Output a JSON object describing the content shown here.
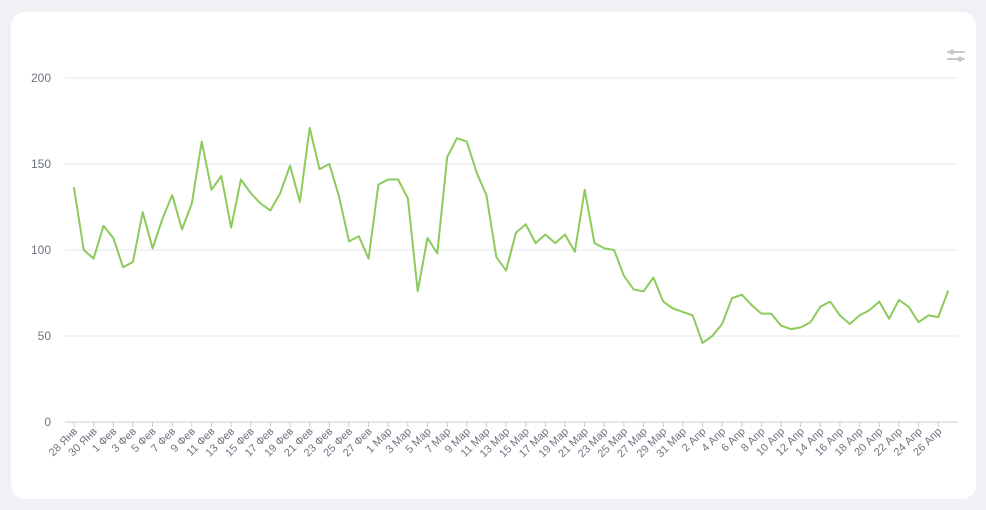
{
  "toolbar": {
    "settings_icon": "sliders-icon"
  },
  "colors": {
    "line": "#8dca5c",
    "grid": "#e6e7ea",
    "axis": "#c9ccd2",
    "card": "#ffffff",
    "background": "#f0f1f4"
  },
  "chart_data": {
    "type": "line",
    "title": "",
    "xlabel": "",
    "ylabel": "",
    "ylim": [
      0,
      200
    ],
    "yticks": [
      0,
      50,
      100,
      150,
      200
    ],
    "grid": true,
    "x": [
      "28 Янв",
      "29 Янв",
      "30 Янв",
      "31 Янв",
      "1 Фев",
      "2 Фев",
      "3 Фев",
      "4 Фев",
      "5 Фев",
      "6 Фев",
      "7 Фев",
      "8 Фев",
      "9 Фев",
      "10 Фев",
      "11 Фев",
      "12 Фев",
      "13 Фев",
      "14 Фев",
      "15 Фев",
      "16 Фев",
      "17 Фев",
      "18 Фев",
      "19 Фев",
      "20 Фев",
      "21 Фев",
      "22 Фев",
      "23 Фев",
      "24 Фев",
      "25 Фев",
      "26 Фев",
      "27 Фев",
      "28 Фев",
      "1 Мар",
      "2 Мар",
      "3 Мар",
      "4 Мар",
      "5 Мар",
      "6 Мар",
      "7 Мар",
      "8 Мар",
      "9 Мар",
      "10 Мар",
      "11 Мар",
      "12 Мар",
      "13 Мар",
      "14 Мар",
      "15 Мар",
      "16 Мар",
      "17 Мар",
      "18 Мар",
      "19 Мар",
      "20 Мар",
      "21 Мар",
      "22 Мар",
      "23 Мар",
      "24 Мар",
      "25 Мар",
      "26 Мар",
      "27 Мар",
      "28 Мар",
      "29 Мар",
      "30 Мар",
      "31 Мар",
      "1 Апр",
      "2 Апр",
      "3 Апр",
      "4 Апр",
      "5 Апр",
      "6 Апр",
      "7 Апр",
      "8 Апр",
      "9 Апр",
      "10 Апр",
      "11 Апр",
      "12 Апр",
      "13 Апр",
      "14 Апр",
      "15 Апр",
      "16 Апр",
      "17 Апр",
      "18 Апр",
      "19 Апр",
      "20 Апр",
      "21 Апр",
      "22 Апр",
      "23 Апр",
      "24 Апр",
      "25 Апр",
      "26 Апр",
      "27 Апр"
    ],
    "x_tick_labels": [
      "28 Янв",
      "30 Янв",
      "1 Фев",
      "3 Фев",
      "5 Фев",
      "7 Фев",
      "9 Фев",
      "11 Фев",
      "13 Фев",
      "15 Фев",
      "17 Фев",
      "19 Фев",
      "21 Фев",
      "23 Фев",
      "25 Фев",
      "27 Фев",
      "1 Мар",
      "3 Мар",
      "5 Мар",
      "7 Мар",
      "9 Мар",
      "11 Мар",
      "13 Мар",
      "15 Мар",
      "17 Мар",
      "19 Мар",
      "21 Мар",
      "23 Мар",
      "25 Мар",
      "27 Мар",
      "29 Мар",
      "31 Мар",
      "2 Апр",
      "4 Апр",
      "6 Апр",
      "8 Апр",
      "10 Апр",
      "12 Апр",
      "14 Апр",
      "16 Апр",
      "18 Апр",
      "20 Апр",
      "22 Апр",
      "24 Апр",
      "26 Апр"
    ],
    "series": [
      {
        "values": [
          136,
          100,
          95,
          114,
          107,
          90,
          93,
          122,
          101,
          118,
          132,
          112,
          127,
          163,
          135,
          143,
          113,
          141,
          133,
          127,
          123,
          133,
          149,
          128,
          171,
          147,
          150,
          131,
          105,
          108,
          95,
          138,
          141,
          141,
          130,
          76,
          107,
          98,
          154,
          165,
          163,
          145,
          132,
          96,
          88,
          110,
          115,
          104,
          109,
          104,
          109,
          99,
          135,
          104,
          101,
          100,
          85,
          77,
          76,
          84,
          70,
          66,
          64,
          62,
          46,
          50,
          57,
          72,
          74,
          68,
          63,
          63,
          56,
          54,
          55,
          58,
          67,
          70,
          62,
          57,
          62,
          65,
          70,
          60,
          71,
          67,
          58,
          62,
          61,
          76
        ]
      }
    ]
  }
}
